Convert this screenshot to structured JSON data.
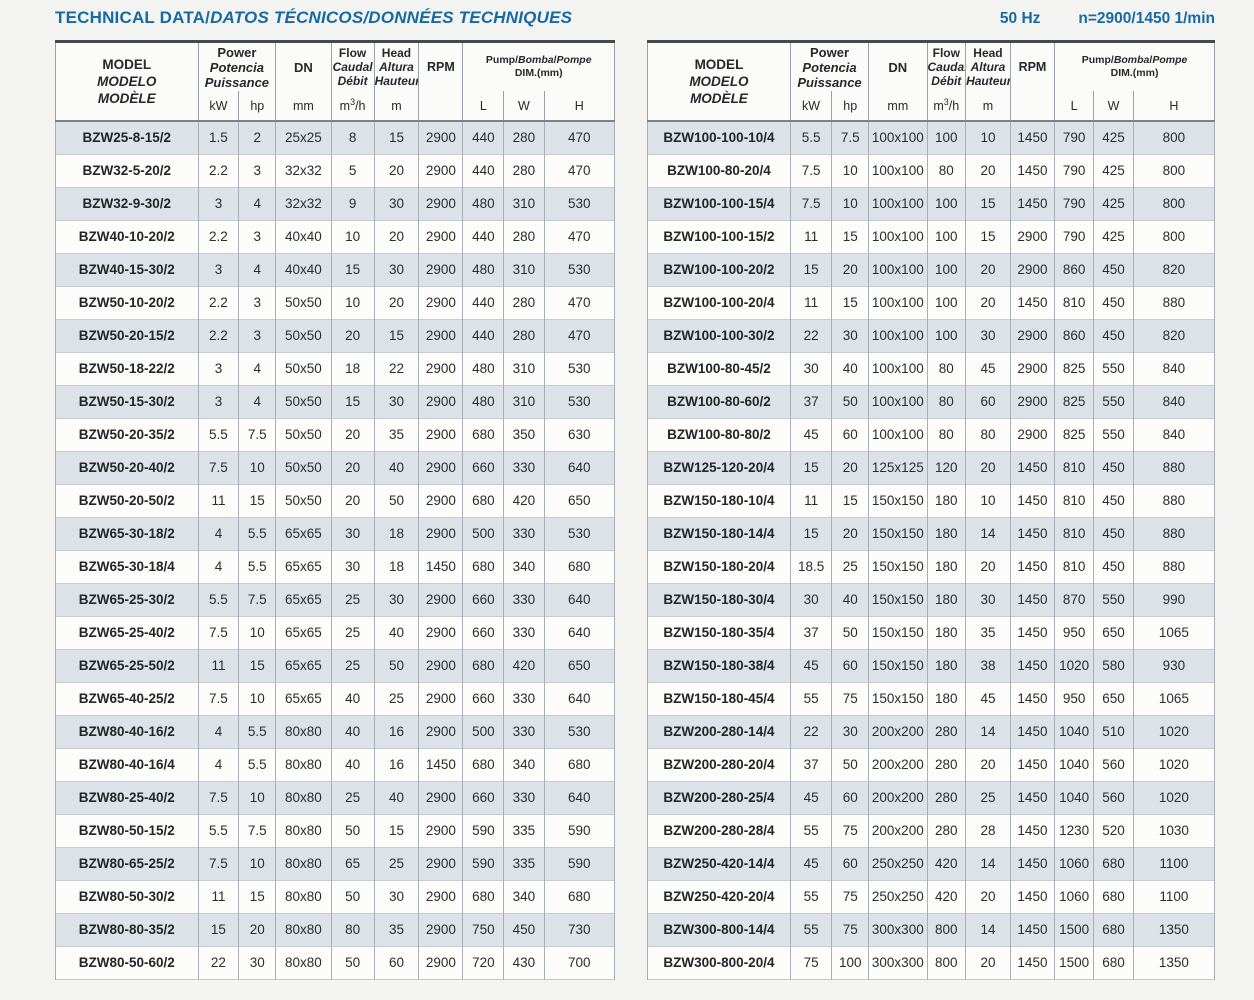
{
  "page": {
    "title_en": "TECHNICAL DATA",
    "title_es": "DATOS TÉCNICOS",
    "title_fr": "DONNÉES TECHNIQUES",
    "separator": "/",
    "frequency": "50 Hz",
    "speed": "n=2900/1450 1/min"
  },
  "header": {
    "model_lines": [
      "MODEL",
      "MODELO",
      "MODÈLE"
    ],
    "power_lines": [
      "Power",
      "Potencia",
      "Puissance"
    ],
    "power_units": [
      "kW",
      "hp"
    ],
    "dn_label": "DN",
    "dn_unit": "mm",
    "flow_lines": [
      "Flow",
      "Caudal",
      "Débit"
    ],
    "flow_unit_base": "m",
    "flow_unit_sup": "3",
    "flow_unit_tail": "/h",
    "head_lines": [
      "Head",
      "Altura",
      "Hauteur"
    ],
    "head_unit": "m",
    "rpm_label": "RPM",
    "dim_parts": [
      "Pump",
      "Bomba",
      "Pompe"
    ],
    "dim_line2": "DIM.(mm)",
    "dim_units": [
      "L",
      "W",
      "H"
    ]
  },
  "left_table": {
    "rows": [
      [
        "BZW25-8-15/2",
        "1.5",
        "2",
        "25x25",
        "8",
        "15",
        "2900",
        "440",
        "280",
        "470"
      ],
      [
        "BZW32-5-20/2",
        "2.2",
        "3",
        "32x32",
        "5",
        "20",
        "2900",
        "440",
        "280",
        "470"
      ],
      [
        "BZW32-9-30/2",
        "3",
        "4",
        "32x32",
        "9",
        "30",
        "2900",
        "480",
        "310",
        "530"
      ],
      [
        "BZW40-10-20/2",
        "2.2",
        "3",
        "40x40",
        "10",
        "20",
        "2900",
        "440",
        "280",
        "470"
      ],
      [
        "BZW40-15-30/2",
        "3",
        "4",
        "40x40",
        "15",
        "30",
        "2900",
        "480",
        "310",
        "530"
      ],
      [
        "BZW50-10-20/2",
        "2.2",
        "3",
        "50x50",
        "10",
        "20",
        "2900",
        "440",
        "280",
        "470"
      ],
      [
        "BZW50-20-15/2",
        "2.2",
        "3",
        "50x50",
        "20",
        "15",
        "2900",
        "440",
        "280",
        "470"
      ],
      [
        "BZW50-18-22/2",
        "3",
        "4",
        "50x50",
        "18",
        "22",
        "2900",
        "480",
        "310",
        "530"
      ],
      [
        "BZW50-15-30/2",
        "3",
        "4",
        "50x50",
        "15",
        "30",
        "2900",
        "480",
        "310",
        "530"
      ],
      [
        "BZW50-20-35/2",
        "5.5",
        "7.5",
        "50x50",
        "20",
        "35",
        "2900",
        "680",
        "350",
        "630"
      ],
      [
        "BZW50-20-40/2",
        "7.5",
        "10",
        "50x50",
        "20",
        "40",
        "2900",
        "660",
        "330",
        "640"
      ],
      [
        "BZW50-20-50/2",
        "11",
        "15",
        "50x50",
        "20",
        "50",
        "2900",
        "680",
        "420",
        "650"
      ],
      [
        "BZW65-30-18/2",
        "4",
        "5.5",
        "65x65",
        "30",
        "18",
        "2900",
        "500",
        "330",
        "530"
      ],
      [
        "BZW65-30-18/4",
        "4",
        "5.5",
        "65x65",
        "30",
        "18",
        "1450",
        "680",
        "340",
        "680"
      ],
      [
        "BZW65-25-30/2",
        "5.5",
        "7.5",
        "65x65",
        "25",
        "30",
        "2900",
        "660",
        "330",
        "640"
      ],
      [
        "BZW65-25-40/2",
        "7.5",
        "10",
        "65x65",
        "25",
        "40",
        "2900",
        "660",
        "330",
        "640"
      ],
      [
        "BZW65-25-50/2",
        "11",
        "15",
        "65x65",
        "25",
        "50",
        "2900",
        "680",
        "420",
        "650"
      ],
      [
        "BZW65-40-25/2",
        "7.5",
        "10",
        "65x65",
        "40",
        "25",
        "2900",
        "660",
        "330",
        "640"
      ],
      [
        "BZW80-40-16/2",
        "4",
        "5.5",
        "80x80",
        "40",
        "16",
        "2900",
        "500",
        "330",
        "530"
      ],
      [
        "BZW80-40-16/4",
        "4",
        "5.5",
        "80x80",
        "40",
        "16",
        "1450",
        "680",
        "340",
        "680"
      ],
      [
        "BZW80-25-40/2",
        "7.5",
        "10",
        "80x80",
        "25",
        "40",
        "2900",
        "660",
        "330",
        "640"
      ],
      [
        "BZW80-50-15/2",
        "5.5",
        "7.5",
        "80x80",
        "50",
        "15",
        "2900",
        "590",
        "335",
        "590"
      ],
      [
        "BZW80-65-25/2",
        "7.5",
        "10",
        "80x80",
        "65",
        "25",
        "2900",
        "590",
        "335",
        "590"
      ],
      [
        "BZW80-50-30/2",
        "11",
        "15",
        "80x80",
        "50",
        "30",
        "2900",
        "680",
        "340",
        "680"
      ],
      [
        "BZW80-80-35/2",
        "15",
        "20",
        "80x80",
        "80",
        "35",
        "2900",
        "750",
        "450",
        "730"
      ],
      [
        "BZW80-50-60/2",
        "22",
        "30",
        "80x80",
        "50",
        "60",
        "2900",
        "720",
        "430",
        "700"
      ]
    ]
  },
  "right_table": {
    "rows": [
      [
        "BZW100-100-10/4",
        "5.5",
        "7.5",
        "100x100",
        "100",
        "10",
        "1450",
        "790",
        "425",
        "800"
      ],
      [
        "BZW100-80-20/4",
        "7.5",
        "10",
        "100x100",
        "80",
        "20",
        "1450",
        "790",
        "425",
        "800"
      ],
      [
        "BZW100-100-15/4",
        "7.5",
        "10",
        "100x100",
        "100",
        "15",
        "1450",
        "790",
        "425",
        "800"
      ],
      [
        "BZW100-100-15/2",
        "11",
        "15",
        "100x100",
        "100",
        "15",
        "2900",
        "790",
        "425",
        "800"
      ],
      [
        "BZW100-100-20/2",
        "15",
        "20",
        "100x100",
        "100",
        "20",
        "2900",
        "860",
        "450",
        "820"
      ],
      [
        "BZW100-100-20/4",
        "11",
        "15",
        "100x100",
        "100",
        "20",
        "1450",
        "810",
        "450",
        "880"
      ],
      [
        "BZW100-100-30/2",
        "22",
        "30",
        "100x100",
        "100",
        "30",
        "2900",
        "860",
        "450",
        "820"
      ],
      [
        "BZW100-80-45/2",
        "30",
        "40",
        "100x100",
        "80",
        "45",
        "2900",
        "825",
        "550",
        "840"
      ],
      [
        "BZW100-80-60/2",
        "37",
        "50",
        "100x100",
        "80",
        "60",
        "2900",
        "825",
        "550",
        "840"
      ],
      [
        "BZW100-80-80/2",
        "45",
        "60",
        "100x100",
        "80",
        "80",
        "2900",
        "825",
        "550",
        "840"
      ],
      [
        "BZW125-120-20/4",
        "15",
        "20",
        "125x125",
        "120",
        "20",
        "1450",
        "810",
        "450",
        "880"
      ],
      [
        "BZW150-180-10/4",
        "11",
        "15",
        "150x150",
        "180",
        "10",
        "1450",
        "810",
        "450",
        "880"
      ],
      [
        "BZW150-180-14/4",
        "15",
        "20",
        "150x150",
        "180",
        "14",
        "1450",
        "810",
        "450",
        "880"
      ],
      [
        "BZW150-180-20/4",
        "18.5",
        "25",
        "150x150",
        "180",
        "20",
        "1450",
        "810",
        "450",
        "880"
      ],
      [
        "BZW150-180-30/4",
        "30",
        "40",
        "150x150",
        "180",
        "30",
        "1450",
        "870",
        "550",
        "990"
      ],
      [
        "BZW150-180-35/4",
        "37",
        "50",
        "150x150",
        "180",
        "35",
        "1450",
        "950",
        "650",
        "1065"
      ],
      [
        "BZW150-180-38/4",
        "45",
        "60",
        "150x150",
        "180",
        "38",
        "1450",
        "1020",
        "580",
        "930"
      ],
      [
        "BZW150-180-45/4",
        "55",
        "75",
        "150x150",
        "180",
        "45",
        "1450",
        "950",
        "650",
        "1065"
      ],
      [
        "BZW200-280-14/4",
        "22",
        "30",
        "200x200",
        "280",
        "14",
        "1450",
        "1040",
        "510",
        "1020"
      ],
      [
        "BZW200-280-20/4",
        "37",
        "50",
        "200x200",
        "280",
        "20",
        "1450",
        "1040",
        "560",
        "1020"
      ],
      [
        "BZW200-280-25/4",
        "45",
        "60",
        "200x200",
        "280",
        "25",
        "1450",
        "1040",
        "560",
        "1020"
      ],
      [
        "BZW200-280-28/4",
        "55",
        "75",
        "200x200",
        "280",
        "28",
        "1450",
        "1230",
        "520",
        "1030"
      ],
      [
        "BZW250-420-14/4",
        "45",
        "60",
        "250x250",
        "420",
        "14",
        "1450",
        "1060",
        "680",
        "1100"
      ],
      [
        "BZW250-420-20/4",
        "55",
        "75",
        "250x250",
        "420",
        "20",
        "1450",
        "1060",
        "680",
        "1100"
      ],
      [
        "BZW300-800-14/4",
        "55",
        "75",
        "300x300",
        "800",
        "14",
        "1450",
        "1500",
        "680",
        "1350"
      ],
      [
        "BZW300-800-20/4",
        "75",
        "100",
        "300x300",
        "800",
        "20",
        "1450",
        "1500",
        "680",
        "1350"
      ]
    ]
  },
  "colors": {
    "accent_blue": "#1769a3",
    "row_shade": "#dde2e9",
    "border_dark": "#46494c"
  }
}
